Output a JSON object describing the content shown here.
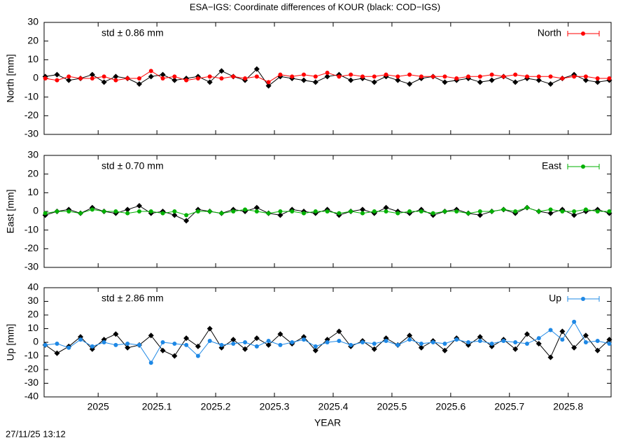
{
  "title": "ESA−IGS: Coordinate differences of KOUR (black: COD−IGS)",
  "footer": "27/11/25 13:12",
  "chart_data": [
    {
      "type": "line",
      "ylabel": "North [mm]",
      "annotation": "std ± 0.86 mm",
      "legend": "top right",
      "xlim": [
        2024.908,
        2025.873
      ],
      "ylim": [
        -30,
        30
      ],
      "yticks": [
        -30,
        -20,
        -10,
        0,
        10,
        20,
        30
      ],
      "x": [
        2024.91,
        2024.93,
        2024.95,
        2024.97,
        2024.99,
        2025.01,
        2025.03,
        2025.05,
        2025.07,
        2025.09,
        2025.11,
        2025.13,
        2025.15,
        2025.17,
        2025.19,
        2025.21,
        2025.23,
        2025.25,
        2025.27,
        2025.29,
        2025.31,
        2025.33,
        2025.35,
        2025.37,
        2025.39,
        2025.41,
        2025.43,
        2025.45,
        2025.47,
        2025.49,
        2025.51,
        2025.53,
        2025.55,
        2025.57,
        2025.59,
        2025.61,
        2025.63,
        2025.65,
        2025.67,
        2025.69,
        2025.71,
        2025.73,
        2025.75,
        2025.77,
        2025.79,
        2025.81,
        2025.83,
        2025.85,
        2025.87
      ],
      "series": [
        {
          "color": "#000000",
          "values": [
            1,
            2,
            -1,
            0,
            2,
            -2,
            1,
            0,
            -3,
            1,
            2,
            -1,
            0,
            1,
            -2,
            4,
            1,
            -1,
            5,
            -4,
            1,
            0,
            -1,
            -2,
            1,
            2,
            -1,
            0,
            -2,
            1,
            -1,
            -3,
            0,
            1,
            -2,
            -1,
            0,
            -2,
            -1,
            1,
            -2,
            0,
            -1,
            -3,
            0,
            2,
            -1,
            -2,
            -1
          ]
        },
        {
          "name": "North",
          "color": "#ff0000",
          "values": [
            0,
            -1,
            1,
            0,
            0,
            1,
            -1,
            0,
            0,
            4,
            0,
            1,
            -1,
            0,
            1,
            0,
            1,
            0,
            1,
            -2,
            2,
            1,
            2,
            1,
            3,
            1,
            2,
            1,
            1,
            2,
            1,
            2,
            1,
            1,
            1,
            0,
            1,
            1,
            2,
            1,
            2,
            1,
            1,
            1,
            0,
            1,
            1,
            0,
            0
          ]
        }
      ]
    },
    {
      "type": "line",
      "ylabel": "East [mm]",
      "annotation": "std ± 0.70 mm",
      "legend": "top right",
      "xlim": [
        2024.908,
        2025.873
      ],
      "ylim": [
        -30,
        30
      ],
      "yticks": [
        -30,
        -20,
        -10,
        0,
        10,
        20,
        30
      ],
      "x": [
        2024.91,
        2024.93,
        2024.95,
        2024.97,
        2024.99,
        2025.01,
        2025.03,
        2025.05,
        2025.07,
        2025.09,
        2025.11,
        2025.13,
        2025.15,
        2025.17,
        2025.19,
        2025.21,
        2025.23,
        2025.25,
        2025.27,
        2025.29,
        2025.31,
        2025.33,
        2025.35,
        2025.37,
        2025.39,
        2025.41,
        2025.43,
        2025.45,
        2025.47,
        2025.49,
        2025.51,
        2025.53,
        2025.55,
        2025.57,
        2025.59,
        2025.61,
        2025.63,
        2025.65,
        2025.67,
        2025.69,
        2025.71,
        2025.73,
        2025.75,
        2025.77,
        2025.79,
        2025.81,
        2025.83,
        2025.85,
        2025.87
      ],
      "series": [
        {
          "color": "#000000",
          "values": [
            -2,
            0,
            1,
            -1,
            2,
            0,
            -1,
            1,
            3,
            -1,
            0,
            -2,
            -5,
            1,
            0,
            -1,
            1,
            0,
            2,
            -1,
            -2,
            1,
            0,
            -1,
            1,
            -2,
            0,
            1,
            -1,
            2,
            0,
            -1,
            1,
            -2,
            0,
            1,
            -1,
            -2,
            0,
            1,
            -1,
            2,
            0,
            -1,
            1,
            -2,
            0,
            1,
            -1
          ]
        },
        {
          "name": "East",
          "color": "#00b000",
          "values": [
            -1,
            0,
            0,
            -1,
            1,
            0,
            0,
            -1,
            0,
            0,
            -1,
            0,
            -2,
            0,
            0,
            -1,
            0,
            1,
            0,
            -1,
            0,
            0,
            -1,
            0,
            0,
            -1,
            0,
            -1,
            0,
            0,
            -1,
            0,
            0,
            -1,
            0,
            0,
            -1,
            0,
            0,
            1,
            0,
            2,
            0,
            1,
            0,
            0,
            1,
            0,
            0
          ]
        }
      ]
    },
    {
      "type": "line",
      "ylabel": "Up [mm]",
      "annotation": "std ± 2.86 mm",
      "legend": "top right",
      "xlabel": "YEAR",
      "xlim": [
        2024.908,
        2025.873
      ],
      "ylim": [
        -40,
        40
      ],
      "yticks": [
        -40,
        -30,
        -20,
        -10,
        0,
        10,
        20,
        30,
        40
      ],
      "xticks": [
        2025,
        2025.1,
        2025.2,
        2025.3,
        2025.4,
        2025.5,
        2025.6,
        2025.7,
        2025.8
      ],
      "x": [
        2024.91,
        2024.93,
        2024.95,
        2024.97,
        2024.99,
        2025.01,
        2025.03,
        2025.05,
        2025.07,
        2025.09,
        2025.11,
        2025.13,
        2025.15,
        2025.17,
        2025.19,
        2025.21,
        2025.23,
        2025.25,
        2025.27,
        2025.29,
        2025.31,
        2025.33,
        2025.35,
        2025.37,
        2025.39,
        2025.41,
        2025.43,
        2025.45,
        2025.47,
        2025.49,
        2025.51,
        2025.53,
        2025.55,
        2025.57,
        2025.59,
        2025.61,
        2025.63,
        2025.65,
        2025.67,
        2025.69,
        2025.71,
        2025.73,
        2025.75,
        2025.77,
        2025.79,
        2025.81,
        2025.83,
        2025.85,
        2025.87
      ],
      "series": [
        {
          "color": "#000000",
          "values": [
            -2,
            -8,
            -3,
            4,
            -5,
            2,
            6,
            -4,
            -2,
            5,
            -6,
            -10,
            3,
            -3,
            10,
            -4,
            2,
            -5,
            3,
            -2,
            6,
            -1,
            4,
            -6,
            2,
            8,
            -3,
            1,
            -5,
            3,
            -2,
            5,
            -4,
            1,
            -6,
            3,
            -2,
            4,
            -3,
            2,
            -5,
            6,
            -1,
            -11,
            8,
            -4,
            5,
            -6,
            2
          ]
        },
        {
          "name": "Up",
          "color": "#1e88e5",
          "values": [
            -2,
            -1,
            -4,
            2,
            -3,
            0,
            -2,
            -1,
            -2,
            -15,
            0,
            -1,
            -2,
            -10,
            1,
            -2,
            -1,
            0,
            -3,
            1,
            -2,
            0,
            2,
            -3,
            0,
            1,
            -2,
            0,
            -1,
            1,
            -2,
            2,
            -1,
            0,
            -1,
            2,
            0,
            1,
            -1,
            1,
            0,
            -1,
            3,
            9,
            2,
            15,
            0,
            1,
            -1
          ]
        }
      ]
    }
  ]
}
